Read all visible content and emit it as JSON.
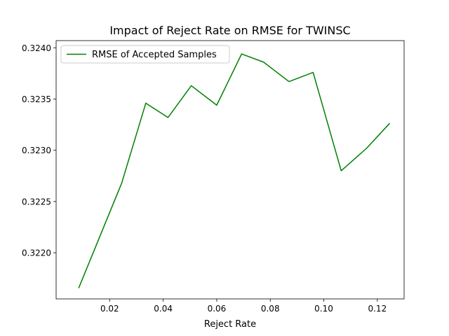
{
  "chart_data": {
    "type": "line",
    "title": "Impact of Reject Rate on RMSE for TWINSC",
    "xlabel": "Reject Rate",
    "ylabel": "",
    "xlim": [
      0.0,
      0.13
    ],
    "ylim": [
      0.32155,
      0.32407
    ],
    "xticks": [
      0.02,
      0.04,
      0.06,
      0.08,
      0.1,
      0.12
    ],
    "xtick_labels": [
      "0.02",
      "0.04",
      "0.06",
      "0.08",
      "0.10",
      "0.12"
    ],
    "yticks": [
      0.322,
      0.3225,
      0.323,
      0.3235,
      0.324
    ],
    "ytick_labels": [
      "0.3220",
      "0.3225",
      "0.3230",
      "0.3235",
      "0.3240"
    ],
    "grid": false,
    "legend_position": "top-left",
    "series": [
      {
        "name": "RMSE of Accepted Samples",
        "color": "#008000",
        "x": [
          0.0085,
          0.0245,
          0.0335,
          0.0418,
          0.0505,
          0.06,
          0.0693,
          0.0775,
          0.087,
          0.096,
          0.1065,
          0.116,
          0.1245
        ],
        "y": [
          0.32166,
          0.32268,
          0.32346,
          0.32332,
          0.32363,
          0.32344,
          0.32394,
          0.32386,
          0.32367,
          0.32376,
          0.3228,
          0.32302,
          0.32326
        ]
      }
    ]
  }
}
